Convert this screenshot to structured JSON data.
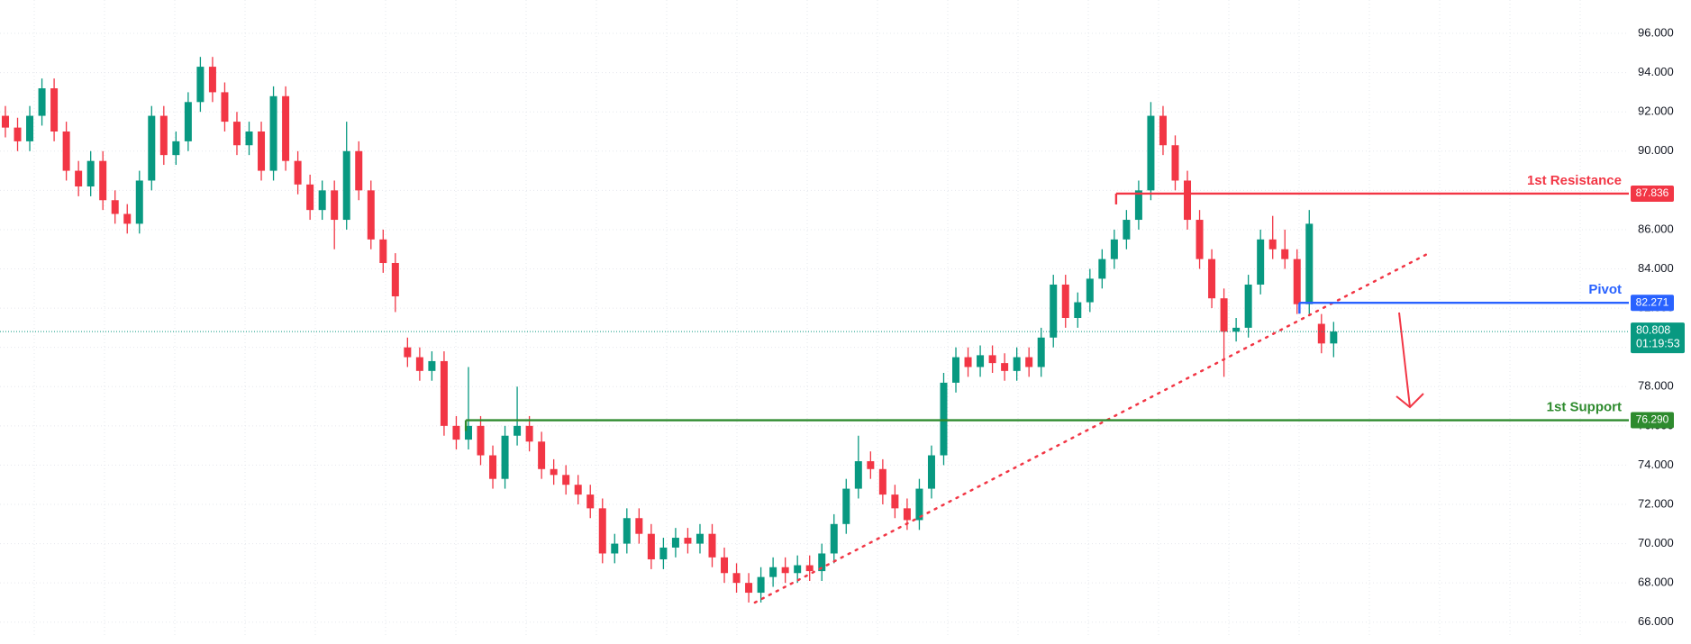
{
  "chart_data": {
    "type": "candlestick",
    "up_color": "#089981",
    "down_color": "#f23645",
    "open": [
      91.8,
      91.2,
      90.5,
      91.8,
      93.2,
      91.0,
      89.0,
      88.2,
      89.5,
      87.5,
      86.8,
      86.3,
      88.5,
      91.8,
      89.8,
      90.5,
      92.5,
      94.3,
      93.0,
      91.5,
      90.3,
      91.0,
      89.0,
      92.8,
      89.5,
      88.3,
      87.0,
      88.0,
      86.5,
      90.0,
      88.0,
      85.5,
      84.3,
      80.0,
      79.5,
      78.8,
      79.3,
      76.0,
      75.3,
      76.0,
      74.5,
      73.3,
      75.5,
      76.0,
      75.2,
      73.8,
      73.5,
      73.0,
      72.5,
      71.8,
      69.5,
      70.0,
      71.3,
      70.5,
      69.2,
      69.8,
      70.3,
      70.0,
      70.5,
      69.3,
      68.5,
      68.0,
      67.5,
      68.3,
      68.8,
      68.5,
      68.9,
      68.6,
      69.5,
      71.0,
      72.8,
      74.2,
      73.8,
      72.5,
      71.8,
      71.2,
      72.8,
      74.5,
      78.2,
      79.5,
      79.0,
      79.6,
      79.2,
      78.8,
      79.5,
      79.0,
      80.5,
      83.2,
      81.5,
      82.3,
      83.5,
      84.5,
      85.5,
      86.5,
      88.0,
      91.8,
      90.3,
      88.5,
      86.5,
      84.5,
      82.5,
      80.8,
      81.0,
      83.2,
      85.5,
      85.0,
      84.5,
      82.2,
      81.2,
      80.2
    ],
    "high": [
      92.3,
      91.7,
      92.3,
      93.7,
      93.7,
      91.5,
      89.5,
      90.0,
      90.0,
      88.0,
      87.3,
      89.0,
      92.3,
      92.3,
      91.0,
      93.0,
      94.8,
      94.8,
      93.5,
      92.0,
      91.5,
      91.5,
      93.3,
      93.3,
      90.0,
      88.8,
      88.5,
      88.5,
      91.5,
      90.5,
      88.5,
      86.0,
      84.8,
      80.5,
      80.0,
      79.8,
      79.8,
      76.5,
      79.0,
      76.5,
      75.0,
      76.0,
      78.0,
      76.5,
      75.7,
      74.3,
      74.0,
      73.5,
      73.0,
      72.3,
      70.5,
      71.8,
      71.8,
      71.0,
      70.3,
      70.8,
      70.8,
      71.0,
      71.0,
      69.8,
      69.0,
      68.5,
      68.8,
      69.3,
      69.3,
      69.4,
      69.4,
      70.0,
      71.5,
      73.3,
      75.5,
      74.7,
      74.3,
      73.0,
      72.3,
      73.3,
      75.0,
      78.7,
      80.0,
      80.0,
      80.1,
      80.1,
      79.7,
      80.0,
      80.0,
      81.0,
      83.7,
      83.7,
      82.8,
      84.0,
      85.0,
      86.0,
      87.0,
      88.5,
      92.5,
      92.3,
      90.8,
      89.0,
      87.0,
      85.0,
      83.0,
      81.5,
      83.7,
      86.0,
      86.7,
      86.0,
      85.0,
      87.0,
      81.7,
      81.3
    ],
    "low": [
      90.7,
      90.0,
      90.0,
      91.3,
      90.5,
      88.5,
      87.7,
      87.7,
      87.0,
      86.3,
      85.8,
      85.8,
      88.0,
      89.3,
      89.3,
      90.0,
      92.0,
      92.5,
      91.0,
      89.8,
      89.8,
      88.5,
      88.5,
      89.0,
      87.8,
      86.5,
      86.5,
      85.0,
      86.0,
      87.5,
      85.0,
      83.8,
      81.8,
      79.0,
      78.3,
      78.3,
      75.5,
      74.8,
      74.8,
      74.0,
      72.8,
      72.8,
      75.0,
      74.7,
      73.3,
      73.0,
      72.5,
      72.0,
      71.3,
      69.0,
      69.0,
      69.5,
      70.0,
      68.7,
      68.7,
      69.3,
      69.5,
      69.5,
      68.8,
      68.0,
      67.5,
      67.0,
      67.0,
      67.8,
      68.0,
      68.0,
      68.1,
      68.1,
      69.0,
      70.5,
      72.3,
      73.3,
      72.0,
      71.3,
      70.7,
      70.7,
      72.3,
      74.0,
      77.7,
      78.5,
      78.5,
      78.7,
      78.3,
      78.3,
      78.5,
      78.5,
      80.0,
      81.0,
      81.0,
      81.8,
      83.0,
      84.0,
      85.0,
      86.0,
      87.5,
      89.8,
      88.0,
      86.0,
      84.0,
      82.0,
      78.5,
      80.3,
      80.5,
      82.7,
      84.5,
      84.0,
      81.7,
      81.7,
      79.7,
      79.5
    ],
    "close": [
      91.2,
      90.5,
      91.8,
      93.2,
      91.0,
      89.0,
      88.2,
      89.5,
      87.5,
      86.8,
      86.3,
      88.5,
      91.8,
      89.8,
      90.5,
      92.5,
      94.3,
      93.0,
      91.5,
      90.3,
      91.0,
      89.0,
      92.8,
      89.5,
      88.3,
      87.0,
      88.0,
      86.5,
      90.0,
      88.0,
      85.5,
      84.3,
      82.6,
      79.5,
      78.8,
      79.3,
      76.0,
      75.3,
      76.0,
      74.5,
      73.3,
      75.5,
      76.0,
      75.2,
      73.8,
      73.5,
      73.0,
      72.5,
      71.8,
      69.5,
      70.0,
      71.3,
      70.5,
      69.2,
      69.8,
      70.3,
      70.0,
      70.5,
      69.3,
      68.5,
      68.0,
      67.5,
      68.3,
      68.8,
      68.5,
      68.9,
      68.6,
      69.5,
      71.0,
      72.8,
      74.2,
      73.8,
      72.5,
      71.8,
      71.2,
      72.8,
      74.5,
      78.2,
      79.5,
      79.0,
      79.6,
      79.2,
      78.8,
      79.5,
      79.0,
      80.5,
      83.2,
      81.5,
      82.3,
      83.5,
      84.5,
      85.5,
      86.5,
      88.0,
      91.8,
      90.3,
      88.5,
      86.5,
      84.5,
      82.5,
      80.8,
      81.0,
      83.2,
      85.5,
      85.0,
      84.5,
      82.2,
      86.3,
      80.2,
      80.808
    ],
    "ylim": [
      65.3,
      97.7
    ],
    "yticks": [
      {
        "value": 66,
        "label": "66.000"
      },
      {
        "value": 68,
        "label": "68.000"
      },
      {
        "value": 70,
        "label": "70.000"
      },
      {
        "value": 72,
        "label": "72.000"
      },
      {
        "value": 74,
        "label": "74.000"
      },
      {
        "value": 76,
        "label": "76.000"
      },
      {
        "value": 78,
        "label": "78.000"
      },
      {
        "value": 80,
        "label": "80.000"
      },
      {
        "value": 82,
        "label": "82.000"
      },
      {
        "value": 84,
        "label": "84.000"
      },
      {
        "value": 86,
        "label": "86.000"
      },
      {
        "value": 88,
        "label": "88.000"
      },
      {
        "value": 90,
        "label": "90.000"
      },
      {
        "value": 92,
        "label": "92.000"
      },
      {
        "value": 94,
        "label": "94.000"
      },
      {
        "value": 96,
        "label": "96.000"
      }
    ],
    "grid": true,
    "levels": [
      {
        "label": "1st Resistance",
        "value": 87.836,
        "color": "#f23645"
      },
      {
        "label": "Pivot",
        "value": 82.271,
        "color": "#2962ff"
      },
      {
        "label": "1st Support",
        "value": 76.29,
        "value_label": "76.290",
        "color": "#2e8b2e"
      }
    ],
    "trendline": {
      "from": 67.0,
      "to": 84.8,
      "color": "#f23645"
    },
    "last": {
      "value": 80.808,
      "time": "01:19:53",
      "color": "#089981"
    }
  }
}
